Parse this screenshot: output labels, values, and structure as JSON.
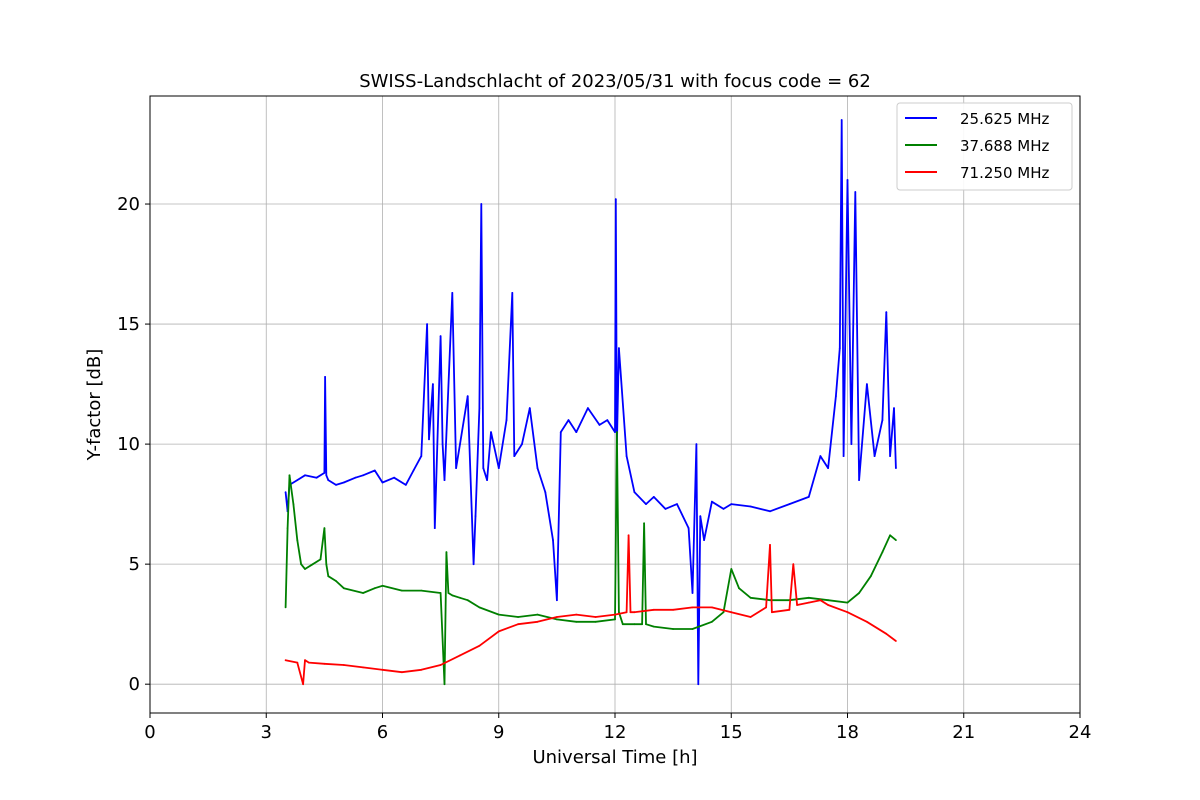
{
  "chart_data": {
    "type": "line",
    "title": "SWISS-Landschlacht of 2023/05/31 with focus code = 62",
    "xlabel": "Universal Time [h]",
    "ylabel": "Y-factor [dB]",
    "xlim": [
      0,
      24
    ],
    "ylim": [
      -1.2,
      24.5
    ],
    "xticks": [
      0,
      3,
      6,
      9,
      12,
      15,
      18,
      21,
      24
    ],
    "yticks": [
      0,
      5,
      10,
      15,
      20
    ],
    "grid": true,
    "legend_position": "top-right",
    "series": [
      {
        "name": "25.625 MHz",
        "color": "#0000ff",
        "x": [
          3.5,
          3.55,
          3.6,
          3.8,
          4.0,
          4.3,
          4.5,
          4.52,
          4.55,
          4.6,
          4.8,
          5.0,
          5.3,
          5.5,
          5.8,
          6.0,
          6.3,
          6.6,
          6.8,
          7.0,
          7.15,
          7.2,
          7.3,
          7.35,
          7.5,
          7.55,
          7.6,
          7.8,
          7.9,
          8.0,
          8.2,
          8.35,
          8.4,
          8.5,
          8.55,
          8.6,
          8.7,
          8.8,
          9.0,
          9.2,
          9.35,
          9.4,
          9.6,
          9.8,
          10.0,
          10.2,
          10.4,
          10.5,
          10.6,
          10.8,
          11.0,
          11.3,
          11.6,
          11.8,
          12.0,
          12.02,
          12.05,
          12.1,
          12.3,
          12.5,
          12.8,
          13.0,
          13.3,
          13.6,
          13.9,
          14.0,
          14.1,
          14.15,
          14.2,
          14.3,
          14.5,
          14.8,
          15.0,
          15.5,
          16.0,
          16.5,
          17.0,
          17.3,
          17.5,
          17.7,
          17.8,
          17.85,
          17.9,
          18.0,
          18.1,
          18.2,
          18.3,
          18.5,
          18.7,
          18.9,
          19.0,
          19.1,
          19.2,
          19.25
        ],
        "values": [
          8.0,
          7.2,
          8.3,
          8.5,
          8.7,
          8.6,
          8.8,
          12.8,
          8.7,
          8.5,
          8.3,
          8.4,
          8.6,
          8.7,
          8.9,
          8.4,
          8.6,
          8.3,
          8.9,
          9.5,
          15.0,
          10.2,
          12.5,
          6.5,
          14.5,
          10.0,
          8.5,
          16.3,
          9.0,
          10.0,
          12.0,
          5.0,
          7.0,
          11.5,
          20.0,
          9.0,
          8.5,
          10.5,
          9.0,
          11.0,
          16.3,
          9.5,
          10.0,
          11.5,
          9.0,
          8.0,
          6.0,
          3.5,
          10.5,
          11.0,
          10.5,
          11.5,
          10.8,
          11.0,
          10.5,
          20.2,
          10.0,
          14.0,
          9.5,
          8.0,
          7.5,
          7.8,
          7.3,
          7.5,
          6.5,
          3.8,
          10.0,
          0.0,
          7.0,
          6.0,
          7.6,
          7.3,
          7.5,
          7.4,
          7.2,
          7.5,
          7.8,
          9.5,
          9.0,
          12.0,
          14.0,
          23.5,
          9.5,
          21.0,
          10.0,
          20.5,
          8.5,
          12.5,
          9.5,
          11.0,
          15.5,
          9.5,
          11.5,
          9.0
        ]
      },
      {
        "name": "37.688 MHz",
        "color": "#008000",
        "x": [
          3.5,
          3.55,
          3.6,
          3.7,
          3.8,
          3.9,
          4.0,
          4.2,
          4.4,
          4.5,
          4.55,
          4.6,
          4.8,
          5.0,
          5.5,
          5.8,
          6.0,
          6.5,
          7.0,
          7.5,
          7.6,
          7.65,
          7.7,
          7.8,
          8.0,
          8.2,
          8.5,
          9.0,
          9.5,
          10.0,
          10.5,
          11.0,
          11.5,
          12.0,
          12.05,
          12.1,
          12.2,
          12.5,
          12.7,
          12.75,
          12.8,
          13.0,
          13.5,
          14.0,
          14.5,
          14.8,
          15.0,
          15.2,
          15.5,
          16.0,
          16.5,
          17.0,
          17.5,
          18.0,
          18.3,
          18.6,
          18.9,
          19.1,
          19.25
        ],
        "values": [
          3.2,
          6.5,
          8.7,
          7.5,
          6.0,
          5.0,
          4.8,
          5.0,
          5.2,
          6.5,
          5.0,
          4.5,
          4.3,
          4.0,
          3.8,
          4.0,
          4.1,
          3.9,
          3.9,
          3.8,
          0.0,
          5.5,
          3.8,
          3.7,
          3.6,
          3.5,
          3.2,
          2.9,
          2.8,
          2.9,
          2.7,
          2.6,
          2.6,
          2.7,
          10.5,
          3.0,
          2.5,
          2.5,
          2.5,
          6.7,
          2.5,
          2.4,
          2.3,
          2.3,
          2.6,
          3.0,
          4.8,
          4.0,
          3.6,
          3.5,
          3.5,
          3.6,
          3.5,
          3.4,
          3.8,
          4.5,
          5.5,
          6.2,
          6.0
        ]
      },
      {
        "name": "71.250 MHz",
        "color": "#ff0000",
        "x": [
          3.5,
          3.8,
          3.95,
          4.0,
          4.1,
          4.5,
          5.0,
          5.5,
          6.0,
          6.5,
          7.0,
          7.5,
          8.0,
          8.5,
          9.0,
          9.5,
          10.0,
          10.5,
          11.0,
          11.5,
          12.0,
          12.3,
          12.35,
          12.4,
          12.5,
          13.0,
          13.5,
          14.0,
          14.5,
          15.0,
          15.5,
          15.9,
          16.0,
          16.05,
          16.5,
          16.6,
          16.7,
          17.0,
          17.3,
          17.5,
          18.0,
          18.5,
          19.0,
          19.25
        ],
        "values": [
          1.0,
          0.9,
          0.0,
          1.0,
          0.9,
          0.85,
          0.8,
          0.7,
          0.6,
          0.5,
          0.6,
          0.8,
          1.2,
          1.6,
          2.2,
          2.5,
          2.6,
          2.8,
          2.9,
          2.8,
          2.9,
          3.0,
          6.2,
          3.0,
          3.0,
          3.1,
          3.1,
          3.2,
          3.2,
          3.0,
          2.8,
          3.2,
          5.8,
          3.0,
          3.1,
          5.0,
          3.3,
          3.4,
          3.5,
          3.3,
          3.0,
          2.6,
          2.1,
          1.8
        ]
      }
    ]
  }
}
